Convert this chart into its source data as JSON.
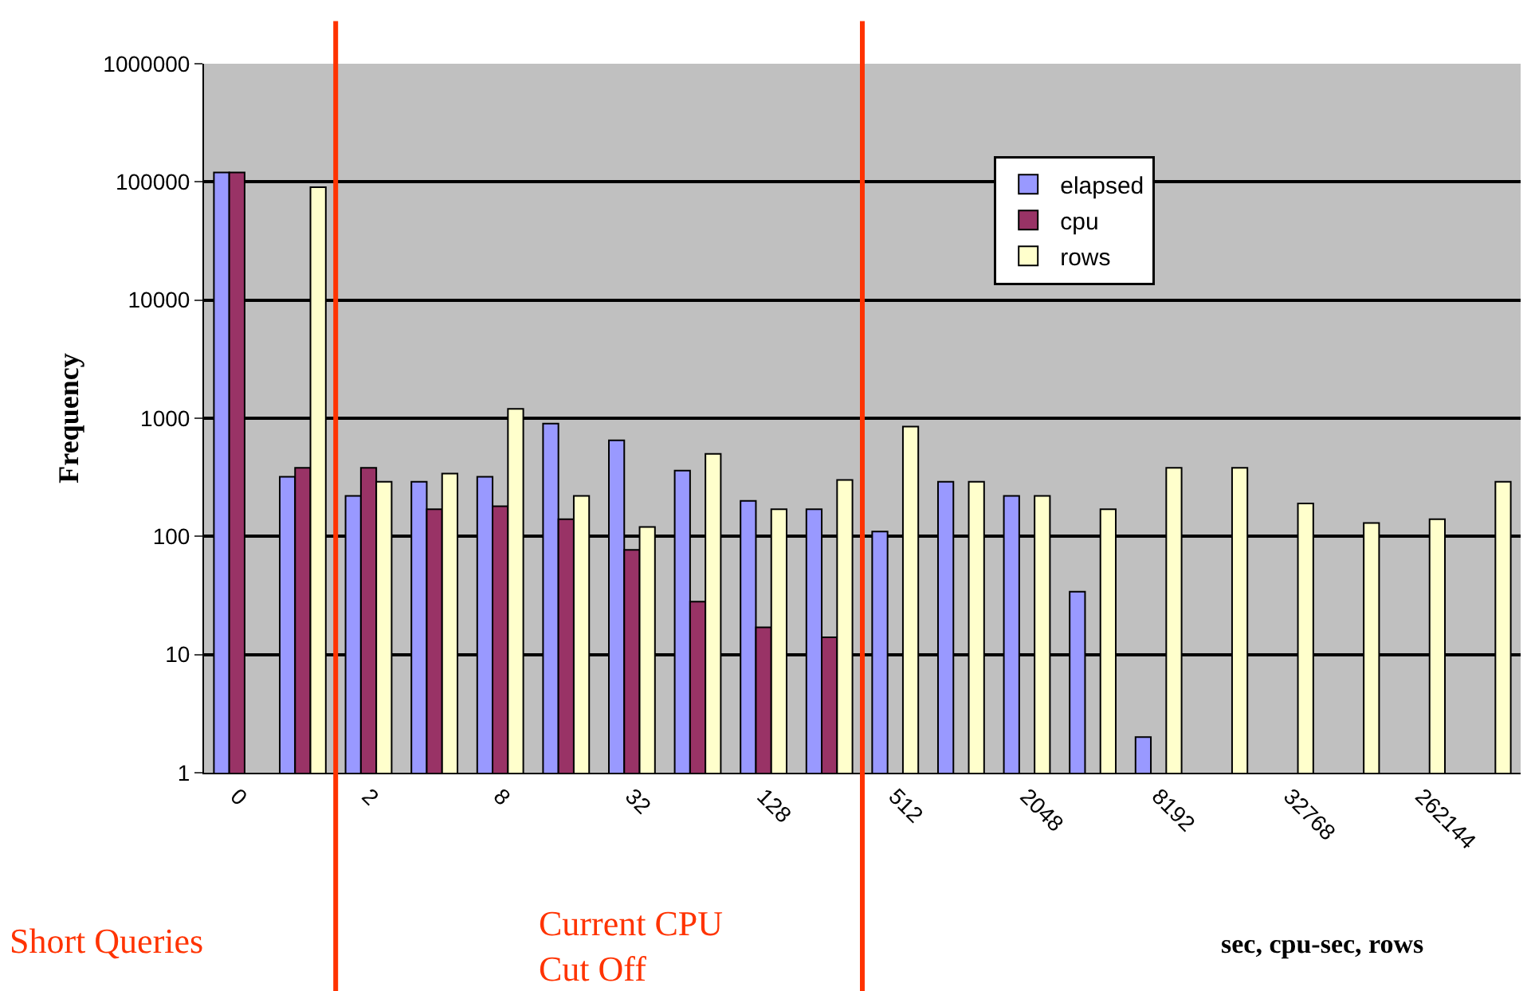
{
  "chart_data": {
    "type": "bar",
    "categories": [
      "0",
      null,
      "2",
      null,
      "8",
      null,
      "32",
      null,
      "128",
      null,
      "512",
      null,
      "2048",
      null,
      "8192",
      null,
      "32768",
      null,
      "262144",
      null
    ],
    "series": [
      {
        "name": "elapsed",
        "color": "#9999ff",
        "values": [
          120000,
          320,
          220,
          290,
          320,
          900,
          650,
          360,
          200,
          170,
          110,
          290,
          220,
          34,
          2,
          null,
          null,
          null,
          null,
          null
        ]
      },
      {
        "name": "cpu",
        "color": "#993366",
        "values": [
          120000,
          380,
          380,
          170,
          180,
          140,
          77,
          28,
          17,
          14,
          null,
          null,
          null,
          null,
          null,
          null,
          null,
          null,
          null,
          null
        ]
      },
      {
        "name": "rows",
        "color": "#ffffcc",
        "values": [
          null,
          90000,
          290,
          340,
          1200,
          220,
          120,
          500,
          170,
          300,
          850,
          290,
          220,
          170,
          380,
          380,
          190,
          130,
          140,
          290
        ]
      }
    ],
    "xlabel": "sec, cpu-sec, rows",
    "ylabel": "Frequency",
    "log": true,
    "ylim": [
      1,
      1000000
    ],
    "yticks": [
      1,
      10,
      100,
      1000,
      10000,
      100000,
      1000000
    ],
    "grid": "y",
    "legend": "top right",
    "annotations": [
      "Short Queries",
      "Current CPU Cut Off"
    ]
  }
}
